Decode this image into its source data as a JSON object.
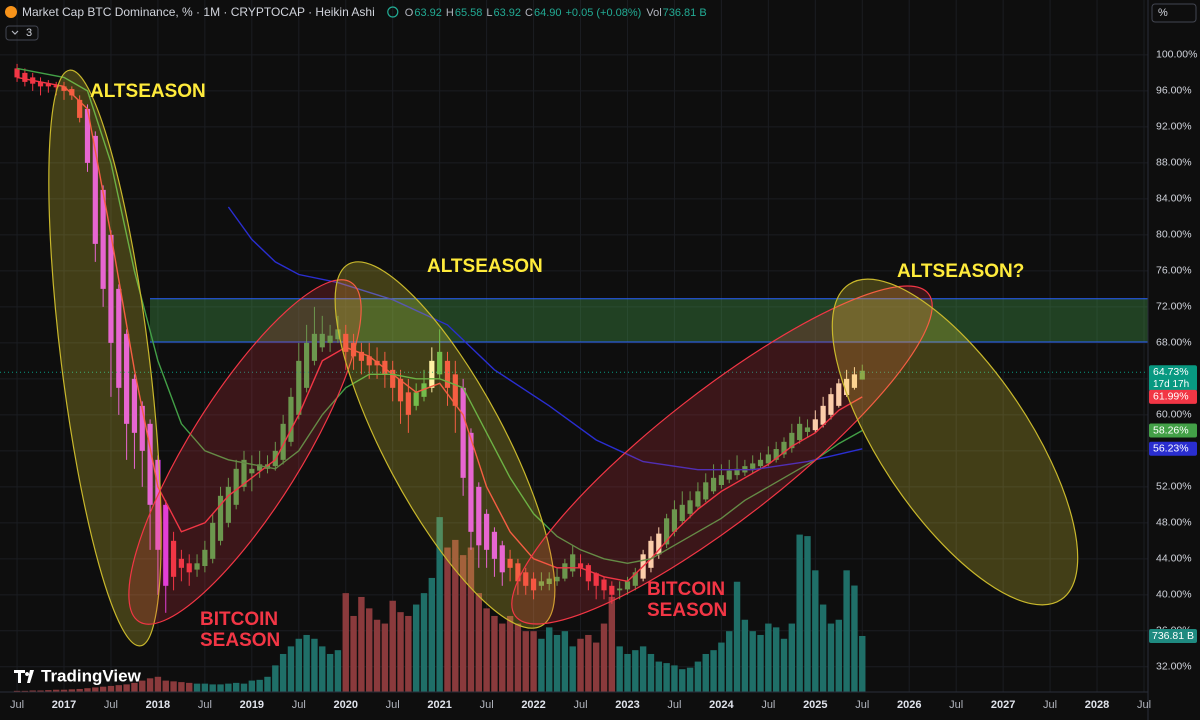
{
  "header": {
    "title": "Market Cap BTC Dominance, % · 1M · CRYPTOCAP · Heikin Ashi",
    "ohlc": [
      [
        "O",
        "63.92"
      ],
      [
        "H",
        "65.58"
      ],
      [
        "L",
        "63.92"
      ],
      [
        "C",
        "64.90"
      ]
    ],
    "change": "+0.05 (+0.08%)",
    "volume_prefix": "Vol",
    "indicators": 3,
    "scale": "%",
    "brand": "TradingView"
  },
  "chart_data": {
    "type": "candlestick",
    "x": [
      "2016-07",
      "2016-08",
      "2016-09",
      "2016-10",
      "2016-11",
      "2016-12",
      "2017-01",
      "2017-02",
      "2017-03",
      "2017-04",
      "2017-05",
      "2017-06",
      "2017-07",
      "2017-08",
      "2017-09",
      "2017-10",
      "2017-11",
      "2017-12",
      "2018-01",
      "2018-02",
      "2018-03",
      "2018-04",
      "2018-05",
      "2018-06",
      "2018-07",
      "2018-08",
      "2018-09",
      "2018-10",
      "2018-11",
      "2018-12",
      "2019-01",
      "2019-02",
      "2019-03",
      "2019-04",
      "2019-05",
      "2019-06",
      "2019-07",
      "2019-08",
      "2019-09",
      "2019-10",
      "2019-11",
      "2019-12",
      "2020-01",
      "2020-02",
      "2020-03",
      "2020-04",
      "2020-05",
      "2020-06",
      "2020-07",
      "2020-08",
      "2020-09",
      "2020-10",
      "2020-11",
      "2020-12",
      "2021-01",
      "2021-02",
      "2021-03",
      "2021-04",
      "2021-05",
      "2021-06",
      "2021-07",
      "2021-08",
      "2021-09",
      "2021-10",
      "2021-11",
      "2021-12",
      "2022-01",
      "2022-02",
      "2022-03",
      "2022-04",
      "2022-05",
      "2022-06",
      "2022-07",
      "2022-08",
      "2022-09",
      "2022-10",
      "2022-11",
      "2022-12",
      "2023-01",
      "2023-02",
      "2023-03",
      "2023-04",
      "2023-05",
      "2023-06",
      "2023-07",
      "2023-08",
      "2023-09",
      "2023-10",
      "2023-11",
      "2023-12",
      "2024-01",
      "2024-02",
      "2024-03",
      "2024-04",
      "2024-05",
      "2024-06",
      "2024-07",
      "2024-08",
      "2024-09",
      "2024-10",
      "2024-11",
      "2024-12",
      "2025-01",
      "2025-02",
      "2025-03",
      "2025-04",
      "2025-05",
      "2025-06",
      "2025-07"
    ],
    "open": [
      98.5,
      98,
      97.5,
      97,
      96.8,
      96.6,
      96.5,
      96.2,
      95,
      94,
      91,
      85,
      80,
      74,
      69,
      64,
      61,
      59,
      55,
      50,
      46,
      44,
      43.5,
      42.8,
      43.2,
      44,
      46,
      48,
      50,
      52,
      53.5,
      53.8,
      54,
      54.3,
      55,
      57,
      60,
      63,
      66,
      67.5,
      68,
      68.4,
      69,
      68,
      67,
      66.5,
      66,
      66,
      65,
      64,
      62.5,
      61,
      62,
      63,
      64.5,
      66,
      64.5,
      63,
      58,
      52,
      49,
      47,
      45.5,
      44,
      43.5,
      42.5,
      41.8,
      41,
      41.2,
      41.5,
      41.8,
      42.6,
      43.5,
      43.3,
      42.4,
      41.7,
      41,
      40.5,
      40.6,
      41,
      41.8,
      43,
      44.5,
      45.6,
      47,
      48.2,
      49,
      49.8,
      50.6,
      51.5,
      52.2,
      52.8,
      53.3,
      53.6,
      54,
      54.3,
      54.6,
      55,
      55.6,
      56.3,
      57.2,
      58.1,
      58.3,
      58.9,
      60,
      61,
      62.2,
      63,
      63.92
    ],
    "high": [
      99,
      98.5,
      98,
      97.5,
      97.2,
      97,
      97,
      96.5,
      95.5,
      94.5,
      91.5,
      85.5,
      80.5,
      74.5,
      69.5,
      64.5,
      61.5,
      59.5,
      55.5,
      50.5,
      47,
      45,
      44.5,
      44.5,
      46,
      49,
      52,
      53,
      55,
      56,
      55.5,
      56,
      55.5,
      57,
      60,
      63,
      68,
      70,
      72,
      71,
      70,
      71,
      70,
      69,
      68,
      68,
      67.5,
      67,
      66,
      65,
      64,
      63.5,
      65,
      67.5,
      69.5,
      67,
      66,
      64,
      58.5,
      52.5,
      49.5,
      47.5,
      46,
      45,
      44,
      43,
      42.5,
      42.5,
      42.5,
      43,
      44,
      45.5,
      44.5,
      43.5,
      42.5,
      42,
      41.5,
      41.5,
      42,
      43,
      45,
      46.5,
      47.5,
      49,
      50.5,
      51.5,
      51.5,
      52.5,
      53.5,
      54.5,
      54.5,
      55,
      55.5,
      55,
      55.5,
      55.8,
      56.5,
      57,
      57.5,
      59,
      59.8,
      59.5,
      60.5,
      62,
      63,
      64,
      65,
      65.3,
      65.58
    ],
    "low": [
      97,
      96.5,
      96,
      95.5,
      95.8,
      95.5,
      95,
      95,
      92.5,
      87,
      77,
      72,
      62,
      60,
      55,
      54,
      52,
      45,
      40,
      38,
      40.5,
      41.5,
      41,
      42,
      42.5,
      43.5,
      45.5,
      47.5,
      49.5,
      51.5,
      51.5,
      53,
      53.5,
      53.8,
      54.5,
      56.5,
      59.5,
      62.5,
      65.5,
      67,
      67,
      68,
      65,
      65,
      64.5,
      64,
      64,
      63,
      61.5,
      59,
      58,
      60.5,
      61.5,
      62.5,
      64,
      61,
      58,
      51,
      45,
      43,
      43,
      42,
      41,
      41.5,
      40,
      40,
      39.5,
      40.5,
      40.5,
      41,
      41.5,
      42,
      42,
      40.5,
      39.5,
      39.5,
      39,
      39.5,
      40,
      40.5,
      41.5,
      42.5,
      44,
      45.2,
      46.5,
      47.8,
      48.5,
      49.5,
      50.3,
      51.2,
      51.8,
      52.4,
      52.8,
      53.2,
      53.5,
      54,
      54.3,
      54.7,
      55.2,
      55.8,
      56.8,
      57.5,
      58,
      58.6,
      59.5,
      60.8,
      62,
      62.8,
      63.92
    ],
    "close": [
      97.5,
      97,
      96.8,
      96.5,
      96.5,
      96.4,
      96,
      95.5,
      93,
      88,
      79,
      74,
      68,
      63,
      59,
      58,
      56,
      50,
      45,
      41,
      42,
      43,
      42.5,
      43.5,
      45,
      48,
      51,
      52,
      54,
      55,
      54,
      54.5,
      54.5,
      56,
      59,
      62,
      66,
      68,
      69,
      69,
      68.8,
      69.5,
      67,
      66.5,
      66,
      65.5,
      65.5,
      64.5,
      63,
      61.5,
      60,
      62.5,
      63.5,
      66,
      67,
      63,
      61,
      53,
      47,
      45.5,
      45,
      44,
      42.5,
      43,
      41.5,
      41,
      40.5,
      41.5,
      41.8,
      42,
      43.5,
      44.5,
      43,
      41.5,
      41,
      40.5,
      40,
      40.7,
      41.5,
      42.5,
      44.5,
      46,
      46.8,
      48.5,
      49.5,
      50,
      50.5,
      51.5,
      52.5,
      53,
      53.3,
      53.8,
      54,
      54.3,
      54.6,
      55,
      55.6,
      56.2,
      57,
      58,
      59,
      58.6,
      59.5,
      61,
      62.3,
      63.5,
      64,
      64.5,
      64.9
    ],
    "colors": [
      "#f23645",
      "#f23645",
      "#f23645",
      "#f23645",
      "#f23645",
      "#f23645",
      "#f23645",
      "#f23645",
      "#f23645",
      "#e040fb",
      "#e040fb",
      "#e040fb",
      "#e040fb",
      "#e040fb",
      "#e040fb",
      "#e040fb",
      "#e040fb",
      "#e040fb",
      "#e040fb",
      "#e040fb",
      "#f23645",
      "#f23645",
      "#f23645",
      "#4caf50",
      "#4caf50",
      "#4caf50",
      "#4caf50",
      "#4caf50",
      "#4caf50",
      "#4caf50",
      "#4caf50",
      "#4caf50",
      "#4caf50",
      "#4caf50",
      "#4caf50",
      "#4caf50",
      "#4caf50",
      "#4caf50",
      "#4caf50",
      "#4caf50",
      "#4caf50",
      "#4caf50",
      "#f23645",
      "#f23645",
      "#f23645",
      "#f23645",
      "#f23645",
      "#f23645",
      "#f23645",
      "#f23645",
      "#f23645",
      "#4caf50",
      "#4caf50",
      "#fff3c4",
      "#4caf50",
      "#f23645",
      "#f23645",
      "#e040fb",
      "#e040fb",
      "#e040fb",
      "#e040fb",
      "#e040fb",
      "#e040fb",
      "#f23645",
      "#f23645",
      "#f23645",
      "#f23645",
      "#4caf50",
      "#4caf50",
      "#4caf50",
      "#4caf50",
      "#4caf50",
      "#f23645",
      "#f23645",
      "#f23645",
      "#f23645",
      "#f23645",
      "#4caf50",
      "#4caf50",
      "#4caf50",
      "#fff3c4",
      "#fff3c4",
      "#fff3c4",
      "#4caf50",
      "#4caf50",
      "#4caf50",
      "#4caf50",
      "#4caf50",
      "#4caf50",
      "#4caf50",
      "#4caf50",
      "#4caf50",
      "#4caf50",
      "#4caf50",
      "#4caf50",
      "#4caf50",
      "#4caf50",
      "#4caf50",
      "#4caf50",
      "#4caf50",
      "#4caf50",
      "#4caf50",
      "#fff3c4",
      "#fff3c4",
      "#fff3c4",
      "#fff3c4",
      "#fff3c4",
      "#fff3c4",
      "#4caf50"
    ],
    "volume": [
      15,
      15,
      20,
      20,
      25,
      30,
      30,
      35,
      40,
      50,
      60,
      70,
      80,
      90,
      100,
      120,
      150,
      180,
      200,
      150,
      140,
      130,
      120,
      110,
      110,
      100,
      100,
      110,
      120,
      110,
      150,
      160,
      200,
      350,
      500,
      600,
      700,
      750,
      700,
      600,
      500,
      550,
      1300,
      1000,
      1250,
      1100,
      950,
      900,
      1200,
      1050,
      1000,
      1150,
      1300,
      1500,
      2300,
      1900,
      2000,
      1800,
      1900,
      1300,
      1100,
      1000,
      900,
      1000,
      900,
      800,
      800,
      700,
      850,
      750,
      800,
      600,
      700,
      750,
      650,
      900,
      1250,
      600,
      500,
      550,
      600,
      500,
      400,
      380,
      350,
      300,
      320,
      400,
      500,
      550,
      650,
      800,
      1450,
      950,
      800,
      750,
      900,
      850,
      700,
      900,
      2070,
      2050,
      1600,
      1150,
      900,
      950,
      1600,
      1400,
      736.81
    ],
    "vlim": [
      0,
      9100
    ],
    "volume_label": "736.81 B",
    "up_volume_color": "#1f6f68",
    "down_volume_color": "#8a3a3c",
    "volume_label_color": "#1f8a80",
    "lines": [
      {
        "color": "#f23645",
        "x": [
          "2016-07",
          "2017-01",
          "2017-04",
          "2017-07",
          "2017-10",
          "2018-01",
          "2018-04",
          "2018-07",
          "2018-10",
          "2019-01",
          "2019-04",
          "2019-07",
          "2019-10",
          "2020-01",
          "2020-04",
          "2020-07",
          "2020-10",
          "2021-01",
          "2021-04",
          "2021-07",
          "2021-10",
          "2022-01",
          "2022-04",
          "2022-07",
          "2022-10",
          "2023-01",
          "2023-04",
          "2023-07",
          "2023-10",
          "2024-01",
          "2024-04",
          "2024-07",
          "2024-10",
          "2025-01",
          "2025-04",
          "2025-07"
        ],
        "values": [
          97.5,
          96.5,
          94,
          80,
          65,
          52,
          47,
          48,
          51,
          53,
          55,
          60,
          66,
          67.5,
          66.5,
          64.5,
          62.5,
          63.5,
          60,
          52,
          47,
          44,
          43,
          43,
          42,
          41.5,
          44,
          47,
          49.5,
          51.5,
          53,
          54.5,
          56.5,
          58,
          60.5,
          61.99
        ],
        "end_label": "61.99%"
      },
      {
        "color": "#43a047",
        "x": [
          "2016-07",
          "2017-01",
          "2017-04",
          "2017-07",
          "2017-10",
          "2018-01",
          "2018-04",
          "2018-07",
          "2018-10",
          "2019-01",
          "2019-04",
          "2019-07",
          "2019-10",
          "2020-01",
          "2020-04",
          "2020-07",
          "2020-10",
          "2021-01",
          "2021-04",
          "2021-07",
          "2021-10",
          "2022-01",
          "2022-04",
          "2022-07",
          "2022-10",
          "2023-01",
          "2023-04",
          "2023-07",
          "2023-10",
          "2024-01",
          "2024-04",
          "2024-07",
          "2024-10",
          "2025-01",
          "2025-04",
          "2025-07"
        ],
        "values": [
          98.5,
          97.5,
          96,
          88,
          76,
          66,
          59,
          56,
          55,
          54.5,
          54,
          56,
          60,
          63,
          64.5,
          64.5,
          64,
          64,
          63,
          58,
          53,
          49,
          46.5,
          45,
          44,
          43.5,
          44,
          45.5,
          47,
          48.5,
          50.5,
          52,
          53.5,
          55,
          56.8,
          58.26
        ],
        "end_label": "58.26%"
      },
      {
        "color": "#2a2ed0",
        "x": [
          "2018-10",
          "2019-01",
          "2019-04",
          "2019-07",
          "2019-12",
          "2020-07",
          "2021-02",
          "2021-08",
          "2022-03",
          "2022-09",
          "2023-03",
          "2023-10",
          "2024-05",
          "2024-12",
          "2025-07"
        ],
        "values": [
          83.1,
          79.5,
          77,
          75.6,
          74.7,
          72.8,
          70,
          65,
          61,
          57.2,
          54.8,
          53.9,
          53.9,
          54.8,
          56.23
        ],
        "end_label": "56.23%"
      }
    ],
    "last_price": {
      "value": 64.73,
      "label": "64.73%"
    },
    "countdown": "17d 17h",
    "last_price_color": "#089981",
    "zone": {
      "low": 68.1,
      "high": 72.9,
      "color": "rgba(76,175,80,0.32)",
      "border": "#2962ff"
    },
    "annotations": [
      {
        "text": "ALTSEASON",
        "color": "#ffeb3b"
      },
      {
        "lines": [
          "BITCOIN",
          "SEASON"
        ],
        "color": "#f23645"
      },
      {
        "text": "ALTSEASON",
        "color": "#ffeb3b"
      },
      {
        "lines": [
          "BITCOIN",
          "SEASON"
        ],
        "color": "#f23645"
      },
      {
        "text": "ALTSEASON?",
        "color": "#ffeb3b"
      }
    ],
    "xlim": [
      "2016-05",
      "2028-07"
    ],
    "ylim": [
      29.2,
      106.1
    ],
    "xticks": [
      {
        "value": "2016-07",
        "label": "Jul"
      },
      {
        "value": "2017-01",
        "label": "2017"
      },
      {
        "value": "2017-07",
        "label": "Jul"
      },
      {
        "value": "2018-01",
        "label": "2018"
      },
      {
        "value": "2018-07",
        "label": "Jul"
      },
      {
        "value": "2019-01",
        "label": "2019"
      },
      {
        "value": "2019-07",
        "label": "Jul"
      },
      {
        "value": "2020-01",
        "label": "2020"
      },
      {
        "value": "2020-07",
        "label": "Jul"
      },
      {
        "value": "2021-01",
        "label": "2021"
      },
      {
        "value": "2021-07",
        "label": "Jul"
      },
      {
        "value": "2022-01",
        "label": "2022"
      },
      {
        "value": "2022-07",
        "label": "Jul"
      },
      {
        "value": "2023-01",
        "label": "2023"
      },
      {
        "value": "2023-07",
        "label": "Jul"
      },
      {
        "value": "2024-01",
        "label": "2024"
      },
      {
        "value": "2024-07",
        "label": "Jul"
      },
      {
        "value": "2025-01",
        "label": "2025"
      },
      {
        "value": "2025-07",
        "label": "Jul"
      },
      {
        "value": "2026-01",
        "label": "2026"
      },
      {
        "value": "2026-07",
        "label": "Jul"
      },
      {
        "value": "2027-01",
        "label": "2027"
      },
      {
        "value": "2027-07",
        "label": "Jul"
      },
      {
        "value": "2028-01",
        "label": "2028"
      },
      {
        "value": "2028-07",
        "label": "Jul"
      }
    ],
    "yticks": [
      {
        "value": 32,
        "label": "32.00%"
      },
      {
        "value": 36,
        "label": "36.00%"
      },
      {
        "value": 40,
        "label": "40.00%"
      },
      {
        "value": 44,
        "label": "44.00%"
      },
      {
        "value": 48,
        "label": "48.00%"
      },
      {
        "value": 52,
        "label": "52.00%"
      },
      {
        "value": 56,
        "label": "56.00%"
      },
      {
        "value": 60,
        "label": "60.00%"
      },
      {
        "value": 64,
        "label": "64.00%"
      },
      {
        "value": 68,
        "label": "68.00%"
      },
      {
        "value": 72,
        "label": "72.00%"
      },
      {
        "value": 76,
        "label": "76.00%"
      },
      {
        "value": 80,
        "label": "80.00%"
      },
      {
        "value": 84,
        "label": "84.00%"
      },
      {
        "value": 88,
        "label": "88.00%"
      },
      {
        "value": 92,
        "label": "92.00%"
      },
      {
        "value": 96,
        "label": "96.00%"
      },
      {
        "value": 100,
        "label": "100.00%"
      }
    ],
    "grid": true
  }
}
